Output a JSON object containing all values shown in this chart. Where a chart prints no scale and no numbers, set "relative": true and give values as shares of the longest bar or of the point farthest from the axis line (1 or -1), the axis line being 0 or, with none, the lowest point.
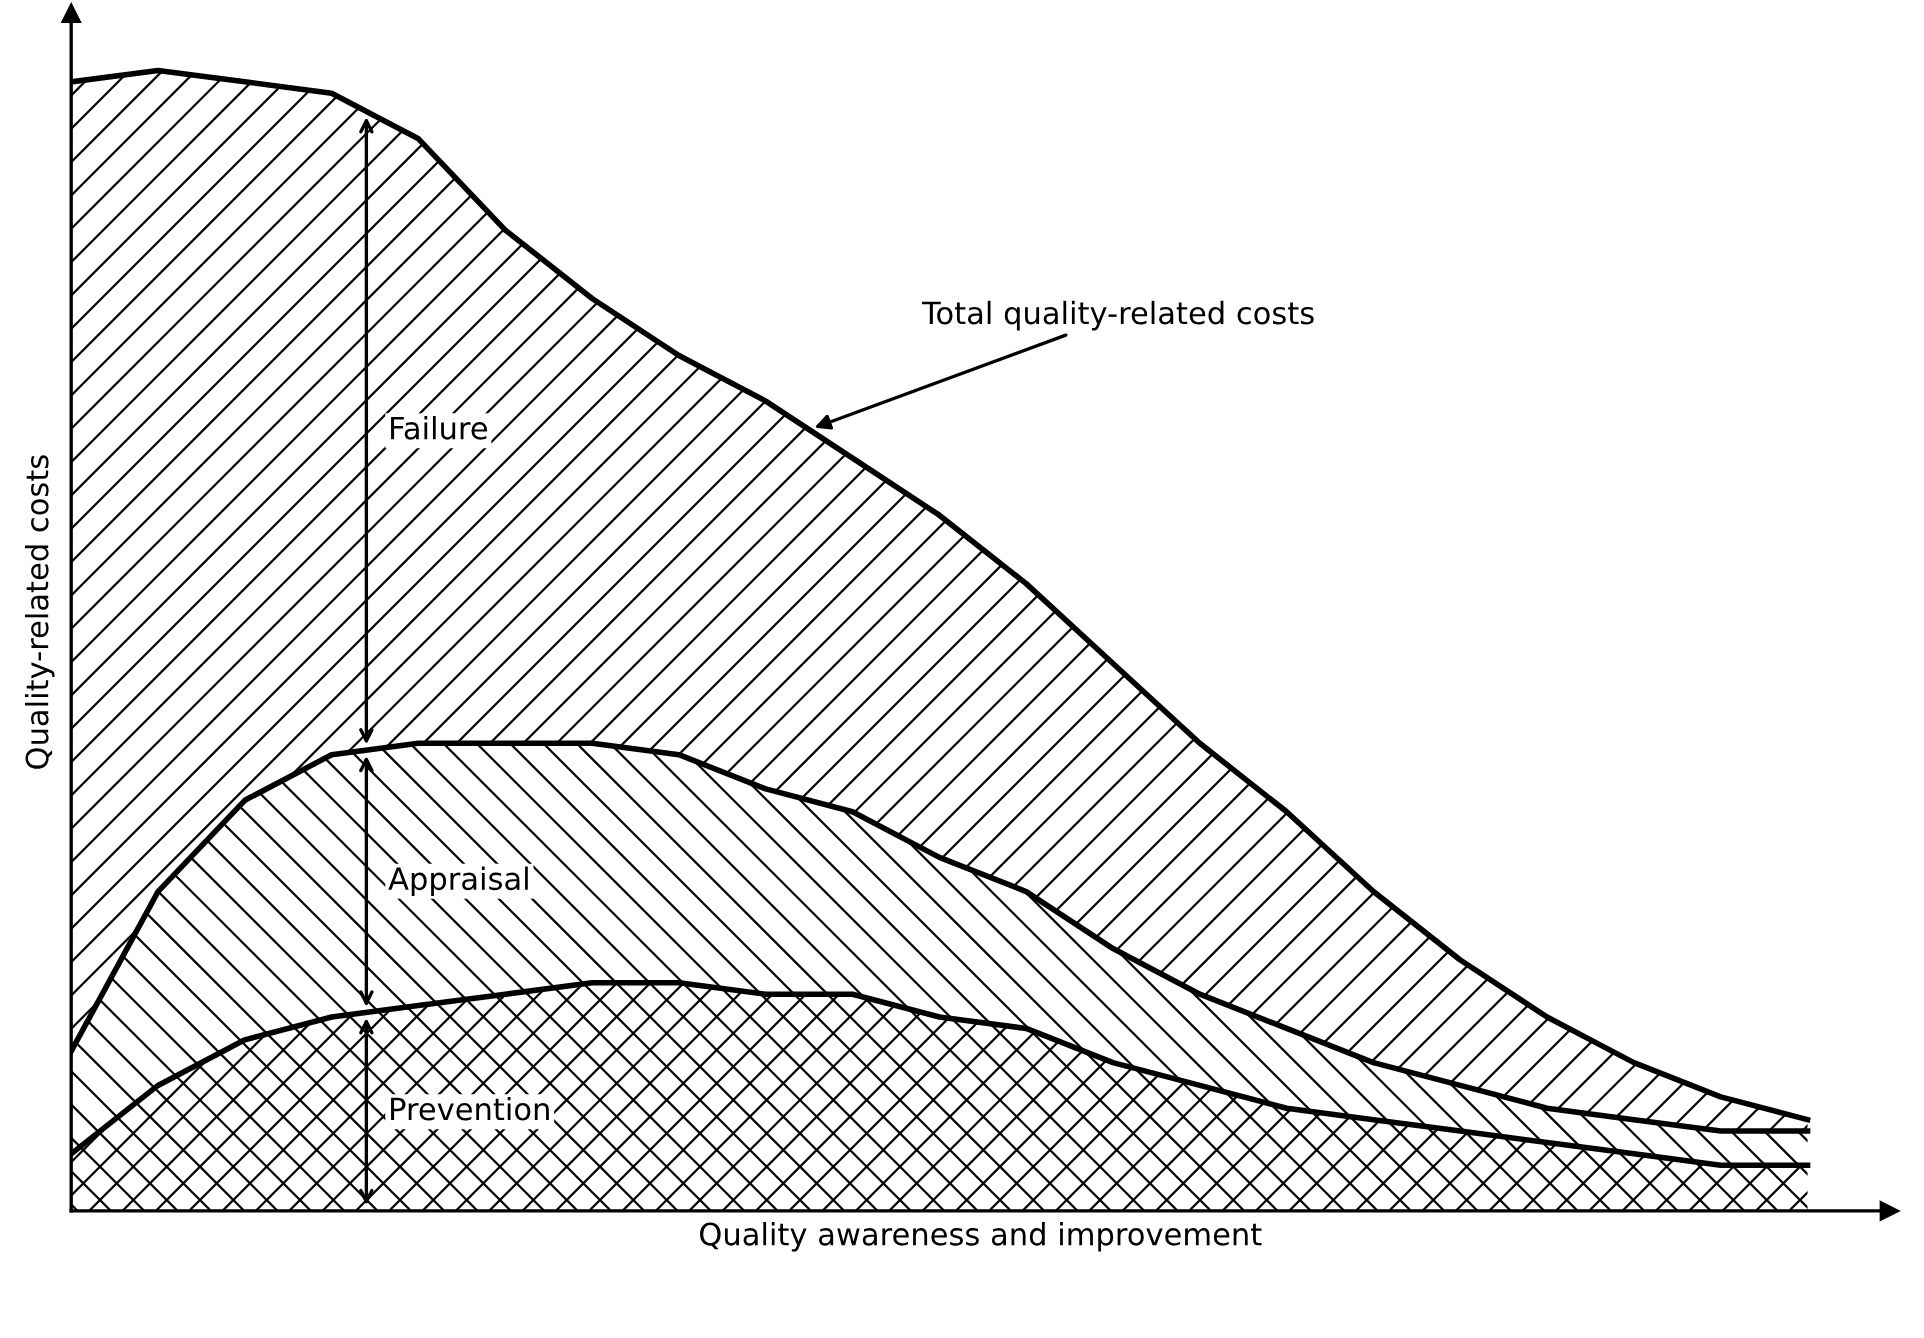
{
  "chart_data": {
    "type": "area",
    "stacked": true,
    "relative": true,
    "xlabel": "Quality awareness and improvement",
    "ylabel": "Quality-related costs",
    "categories": [
      null,
      null,
      null,
      null,
      null,
      null,
      null,
      null,
      null,
      null,
      null,
      null,
      null,
      null,
      null,
      null,
      null,
      null,
      null,
      null,
      null
    ],
    "series": [
      {
        "name": "Prevention",
        "color": "#000000",
        "values": [
          0.05,
          0.11,
          0.15,
          0.17,
          0.18,
          0.19,
          0.2,
          0.2,
          0.19,
          0.19,
          0.17,
          0.16,
          0.13,
          0.11,
          0.09,
          0.08,
          0.07,
          0.06,
          0.05,
          0.04,
          0.04
        ]
      },
      {
        "name": "Appraisal",
        "color": "#000000",
        "values": [
          0.09,
          0.17,
          0.21,
          0.23,
          0.23,
          0.22,
          0.21,
          0.2,
          0.18,
          0.16,
          0.14,
          0.12,
          0.1,
          0.08,
          0.07,
          0.05,
          0.04,
          0.03,
          0.03,
          0.03,
          0.03
        ]
      },
      {
        "name": "Failure",
        "color": "#000000",
        "values": [
          0.85,
          0.72,
          0.63,
          0.58,
          0.53,
          0.45,
          0.39,
          0.35,
          0.34,
          0.31,
          0.3,
          0.27,
          0.25,
          0.22,
          0.19,
          0.15,
          0.11,
          0.08,
          0.05,
          0.03,
          0.01
        ]
      }
    ],
    "annotations": [
      "Total quality-related costs"
    ],
    "legend": false
  }
}
